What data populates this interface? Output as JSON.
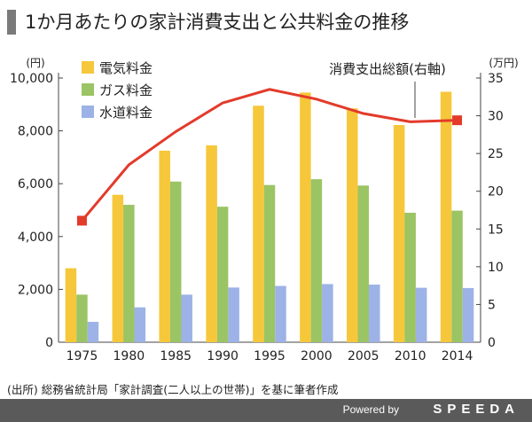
{
  "title": "1か月あたりの家計消費支出と公共料金の推移",
  "source": "(出所) 総務省統計局「家計調査(二人以上の世帯)」を基に筆者作成",
  "footer": {
    "powered": "Powered by",
    "brand": "SPEEDA"
  },
  "chart_data": {
    "type": "bar",
    "categories": [
      "1975",
      "1980",
      "1985",
      "1990",
      "1995",
      "2000",
      "2005",
      "2010",
      "2014"
    ],
    "left_axis": {
      "unit": "(円)",
      "ylim": [
        0,
        10000
      ],
      "ticks": [
        "0",
        "2,000",
        "4,000",
        "6,000",
        "8,000",
        "10,000"
      ]
    },
    "right_axis": {
      "unit": "(万円)",
      "ylim": [
        0,
        35
      ],
      "ticks": [
        "0",
        "5",
        "10",
        "15",
        "20",
        "25",
        "30",
        "35"
      ]
    },
    "series": [
      {
        "name": "電気料金",
        "type": "bar",
        "axis": "left",
        "color": "#f6c73a",
        "values": [
          2800,
          5580,
          7250,
          7450,
          8950,
          9450,
          8850,
          8220,
          9480
        ]
      },
      {
        "name": "ガス料金",
        "type": "bar",
        "axis": "left",
        "color": "#9bc464",
        "values": [
          1800,
          5200,
          6080,
          5130,
          5950,
          6170,
          5930,
          4900,
          4980
        ]
      },
      {
        "name": "水道料金",
        "type": "bar",
        "axis": "left",
        "color": "#9db2e6",
        "values": [
          770,
          1320,
          1800,
          2070,
          2130,
          2200,
          2180,
          2060,
          2050
        ]
      },
      {
        "name": "消費支出総額(右軸)",
        "type": "line",
        "axis": "right",
        "color": "#e33a2a",
        "values": [
          16.1,
          23.5,
          27.9,
          31.7,
          33.5,
          32.2,
          30.3,
          29.2,
          29.4
        ]
      }
    ],
    "grid": false,
    "legend_position": "top-left"
  }
}
